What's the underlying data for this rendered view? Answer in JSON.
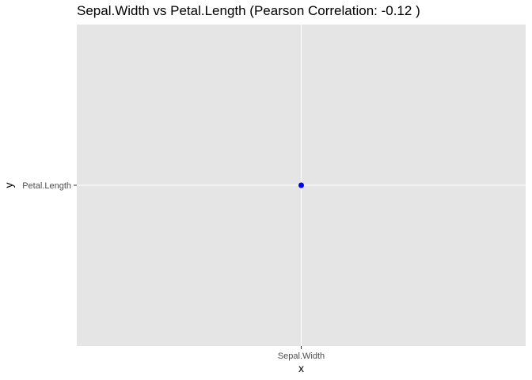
{
  "chart_data": {
    "type": "scatter",
    "title": "Sepal.Width  vs  Petal.Length (Pearson Correlation:  -0.12 )",
    "xlabel": "x",
    "ylabel": "y",
    "x_categories": [
      "Sepal.Width"
    ],
    "y_categories": [
      "Petal.Length"
    ],
    "points": [
      {
        "x": "Sepal.Width",
        "y": "Petal.Length"
      }
    ],
    "point_color": "#0000ff",
    "panel_background": "#e5e5e5",
    "grid_color": "#ffffff",
    "grid": true,
    "legend": "none"
  }
}
